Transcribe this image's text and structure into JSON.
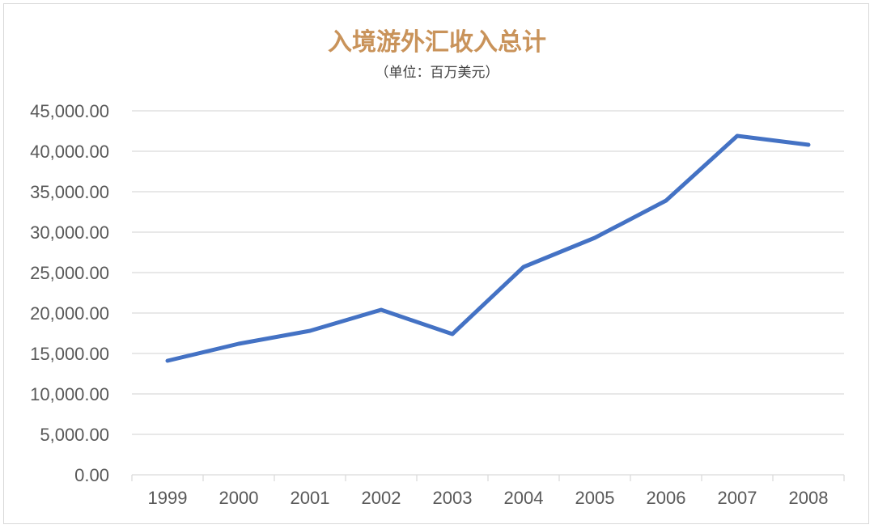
{
  "chart_data": {
    "type": "line",
    "title": "入境游外汇收入总计",
    "subtitle": "（单位：百万美元）",
    "xlabel": "",
    "ylabel": "",
    "categories": [
      "1999",
      "2000",
      "2001",
      "2002",
      "2003",
      "2004",
      "2005",
      "2006",
      "2007",
      "2008"
    ],
    "series": [
      {
        "values": [
          14100,
          16200,
          17800,
          20400,
          17400,
          25700,
          29300,
          33900,
          41900,
          40800
        ],
        "color": "#4472c4"
      }
    ],
    "ylim": [
      0,
      45000
    ],
    "yticks": [
      0,
      5000,
      10000,
      15000,
      20000,
      25000,
      30000,
      35000,
      40000,
      45000
    ],
    "ytick_labels": [
      "0.00",
      "5,000.00",
      "10,000.00",
      "15,000.00",
      "20,000.00",
      "25,000.00",
      "30,000.00",
      "35,000.00",
      "40,000.00",
      "45,000.00"
    ],
    "grid": true,
    "legend": "none"
  }
}
